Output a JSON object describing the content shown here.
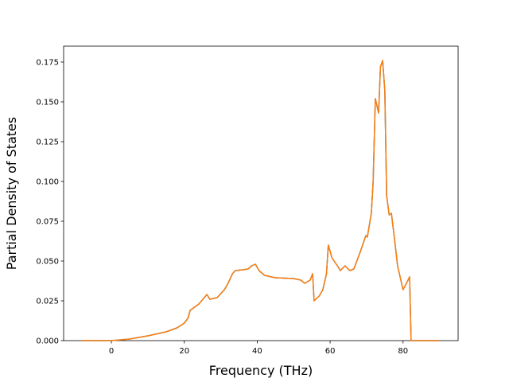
{
  "chart_data": {
    "type": "line",
    "xlabel": "Frequency (THz)",
    "ylabel": "Partial Density of States",
    "x": [
      -8.3,
      0,
      5,
      10,
      15,
      18,
      20,
      21,
      21.6,
      24,
      26.2,
      27,
      29,
      31,
      32,
      33.2,
      34,
      36,
      37.5,
      38.5,
      39.5,
      40.5,
      42,
      45,
      50,
      52,
      53,
      54.5,
      55.2,
      55.6,
      57,
      58,
      59,
      59.5,
      60.5,
      62,
      62.8,
      64.1,
      65.4,
      66.5,
      68.3,
      69.8,
      70.2,
      71.3,
      71.8,
      72.4,
      73.3,
      73.8,
      74.4,
      75,
      75.5,
      76.2,
      76.8,
      77.6,
      78.5,
      80,
      80.7,
      81.8,
      82.2,
      90
    ],
    "series": [
      {
        "color": "#1f77b4",
        "values": [
          0,
          0,
          0.001,
          0.003,
          0.0055,
          0.008,
          0.011,
          0.014,
          0.019,
          0.023,
          0.029,
          0.026,
          0.027,
          0.032,
          0.036,
          0.042,
          0.044,
          0.0445,
          0.045,
          0.047,
          0.048,
          0.044,
          0.041,
          0.0395,
          0.039,
          0.038,
          0.036,
          0.038,
          0.042,
          0.025,
          0.028,
          0.032,
          0.042,
          0.06,
          0.052,
          0.047,
          0.044,
          0.047,
          0.044,
          0.045,
          0.056,
          0.066,
          0.065,
          0.08,
          0.1,
          0.152,
          0.143,
          0.172,
          0.176,
          0.157,
          0.091,
          0.079,
          0.08,
          0.065,
          0.047,
          0.032,
          0.035,
          0.04,
          0,
          0
        ]
      },
      {
        "color": "#ff7f0e",
        "values": [
          0,
          0,
          0.001,
          0.003,
          0.0055,
          0.008,
          0.011,
          0.014,
          0.019,
          0.023,
          0.029,
          0.026,
          0.027,
          0.032,
          0.036,
          0.042,
          0.044,
          0.0445,
          0.045,
          0.047,
          0.048,
          0.044,
          0.041,
          0.0395,
          0.039,
          0.038,
          0.036,
          0.038,
          0.042,
          0.025,
          0.028,
          0.032,
          0.042,
          0.06,
          0.052,
          0.047,
          0.044,
          0.047,
          0.044,
          0.045,
          0.056,
          0.066,
          0.065,
          0.08,
          0.1,
          0.152,
          0.143,
          0.172,
          0.176,
          0.157,
          0.091,
          0.079,
          0.08,
          0.065,
          0.047,
          0.032,
          0.035,
          0.04,
          0,
          0
        ]
      }
    ],
    "xlim": [
      -13.1,
      95.1
    ],
    "xticks": [
      0,
      20,
      40,
      60,
      80
    ],
    "ylim": [
      0,
      0.185
    ],
    "yticks": [
      {
        "value": 0,
        "label": "0.000"
      },
      0.025,
      {
        "value": 0.05,
        "label": "0.050"
      },
      0.075,
      {
        "value": 0.1,
        "label": "0.100"
      },
      0.125,
      {
        "value": 0.15,
        "label": "0.150"
      },
      0.175
    ]
  }
}
